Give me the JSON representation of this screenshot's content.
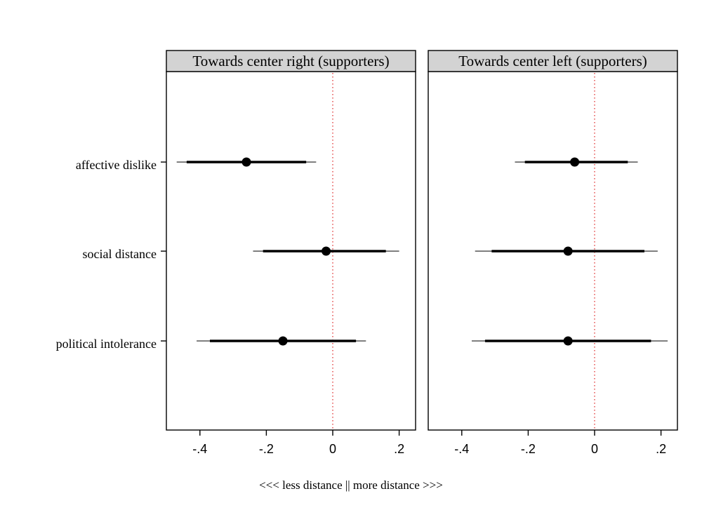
{
  "chart_data": {
    "type": "scatter",
    "xlabel": "<<< less distance || more distance >>>",
    "categories": [
      "affective dislike",
      "social distance",
      "political intolerance"
    ],
    "xlim": [
      -0.5,
      0.25
    ],
    "xticks": [
      -0.4,
      -0.2,
      0,
      0.2
    ],
    "xtick_labels": [
      "-.4",
      "-.2",
      "0",
      ".2"
    ],
    "reference_line": {
      "x": 0,
      "color": "#e03030",
      "style": "dotted"
    },
    "panels": [
      {
        "title": "Towards center right (supporters)",
        "estimates": [
          {
            "label": "affective dislike",
            "estimate": -0.26,
            "ci_inner": [
              -0.44,
              -0.08
            ],
            "ci_outer": [
              -0.47,
              -0.05
            ]
          },
          {
            "label": "social distance",
            "estimate": -0.02,
            "ci_inner": [
              -0.21,
              0.16
            ],
            "ci_outer": [
              -0.24,
              0.2
            ]
          },
          {
            "label": "political intolerance",
            "estimate": -0.15,
            "ci_inner": [
              -0.37,
              0.07
            ],
            "ci_outer": [
              -0.41,
              0.1
            ]
          }
        ]
      },
      {
        "title": "Towards center left (supporters)",
        "estimates": [
          {
            "label": "affective dislike",
            "estimate": -0.06,
            "ci_inner": [
              -0.21,
              0.1
            ],
            "ci_outer": [
              -0.24,
              0.13
            ]
          },
          {
            "label": "social distance",
            "estimate": -0.08,
            "ci_inner": [
              -0.31,
              0.15
            ],
            "ci_outer": [
              -0.36,
              0.19
            ]
          },
          {
            "label": "political intolerance",
            "estimate": -0.08,
            "ci_inner": [
              -0.33,
              0.17
            ],
            "ci_outer": [
              -0.37,
              0.22
            ]
          }
        ]
      }
    ]
  },
  "colors": {
    "point": "#000000",
    "ci_inner": "#000000",
    "ci_outer": "#555555",
    "reference": "#e03030",
    "header_fill": "#d3d3d3"
  }
}
